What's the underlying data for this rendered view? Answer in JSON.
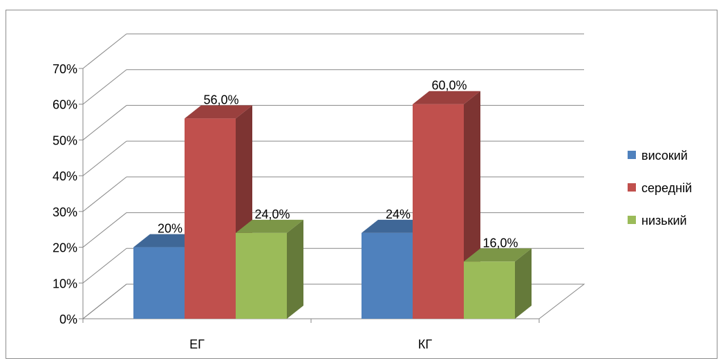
{
  "chart_data": {
    "type": "bar",
    "subtype": "3d-clustered-column",
    "categories": [
      "ЕГ",
      "КГ"
    ],
    "series": [
      {
        "name": "високий",
        "color": "#4f81bd",
        "values": [
          20,
          24
        ],
        "labels": [
          "20%",
          "24%"
        ]
      },
      {
        "name": "середній",
        "color": "#c0504d",
        "values": [
          56,
          60
        ],
        "labels": [
          "56,0%",
          "60,0%"
        ]
      },
      {
        "name": "низький",
        "color": "#9bbb59",
        "values": [
          24,
          16
        ],
        "labels": [
          "24,0%",
          "16,0%"
        ]
      }
    ],
    "ylim": [
      0,
      70
    ],
    "yticks": [
      "0%",
      "10%",
      "20%",
      "30%",
      "40%",
      "50%",
      "60%",
      "70%"
    ],
    "grid": true,
    "legend_position": "right"
  }
}
